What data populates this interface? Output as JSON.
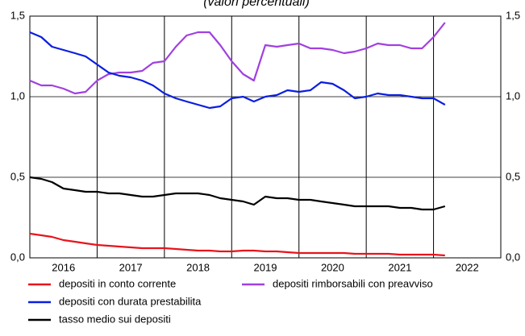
{
  "chart_data": {
    "type": "line",
    "title": "(valori percentuali)",
    "x": [
      2016,
      2016.17,
      2016.33,
      2016.5,
      2016.67,
      2016.83,
      2017,
      2017.17,
      2017.33,
      2017.5,
      2017.67,
      2017.83,
      2018,
      2018.17,
      2018.33,
      2018.5,
      2018.67,
      2018.83,
      2019,
      2019.17,
      2019.33,
      2019.5,
      2019.67,
      2019.83,
      2020,
      2020.17,
      2020.33,
      2020.5,
      2020.67,
      2020.83,
      2021,
      2021.17,
      2021.33,
      2021.5,
      2021.67,
      2021.83,
      2022,
      2022.17
    ],
    "series": [
      {
        "name": "depositi in conto corrente",
        "color": "#e8141c",
        "values": [
          0.15,
          0.14,
          0.13,
          0.11,
          0.1,
          0.09,
          0.08,
          0.075,
          0.07,
          0.065,
          0.06,
          0.06,
          0.06,
          0.055,
          0.05,
          0.045,
          0.045,
          0.04,
          0.04,
          0.045,
          0.045,
          0.04,
          0.04,
          0.035,
          0.03,
          0.03,
          0.03,
          0.03,
          0.03,
          0.025,
          0.025,
          0.025,
          0.025,
          0.02,
          0.02,
          0.02,
          0.02,
          0.015
        ]
      },
      {
        "name": "depositi rimborsabili con preavviso",
        "color": "#a040e0",
        "values": [
          1.1,
          1.07,
          1.07,
          1.05,
          1.02,
          1.03,
          1.1,
          1.14,
          1.15,
          1.15,
          1.16,
          1.21,
          1.22,
          1.31,
          1.38,
          1.4,
          1.4,
          1.32,
          1.22,
          1.14,
          1.1,
          1.32,
          1.31,
          1.32,
          1.33,
          1.3,
          1.3,
          1.29,
          1.27,
          1.28,
          1.3,
          1.33,
          1.32,
          1.32,
          1.3,
          1.3,
          1.37,
          1.46
        ]
      },
      {
        "name": "depositi con durata prestabilita",
        "color": "#0a1ee0",
        "values": [
          1.4,
          1.37,
          1.31,
          1.29,
          1.27,
          1.25,
          1.2,
          1.15,
          1.13,
          1.12,
          1.1,
          1.07,
          1.02,
          0.99,
          0.97,
          0.95,
          0.93,
          0.94,
          0.99,
          1.0,
          0.97,
          1.0,
          1.01,
          1.04,
          1.03,
          1.04,
          1.09,
          1.08,
          1.04,
          0.99,
          1.0,
          1.02,
          1.01,
          1.01,
          1.0,
          0.99,
          0.99,
          0.95
        ]
      },
      {
        "name": "tasso medio sui depositi",
        "color": "#000000",
        "values": [
          0.5,
          0.49,
          0.47,
          0.43,
          0.42,
          0.41,
          0.41,
          0.4,
          0.4,
          0.39,
          0.38,
          0.38,
          0.39,
          0.4,
          0.4,
          0.4,
          0.39,
          0.37,
          0.36,
          0.35,
          0.33,
          0.38,
          0.37,
          0.37,
          0.36,
          0.36,
          0.35,
          0.34,
          0.33,
          0.32,
          0.32,
          0.32,
          0.32,
          0.31,
          0.31,
          0.3,
          0.3,
          0.32
        ]
      }
    ],
    "xlim": [
      2016,
      2023
    ],
    "xticks": [
      {
        "value": 2016.5,
        "label": "2016"
      },
      {
        "value": 2017.5,
        "label": "2017"
      },
      {
        "value": 2018.5,
        "label": "2018"
      },
      {
        "value": 2019.5,
        "label": "2019"
      },
      {
        "value": 2020.5,
        "label": "2020"
      },
      {
        "value": 2021.5,
        "label": "2021"
      },
      {
        "value": 2022.5,
        "label": "2022"
      }
    ],
    "xgrid": [
      2017,
      2018,
      2019,
      2020,
      2021,
      2022
    ],
    "ylim": [
      0,
      1.5
    ],
    "yticks": [
      {
        "value": 0,
        "label": "0,0"
      },
      {
        "value": 0.5,
        "label": "0,5"
      },
      {
        "value": 1.0,
        "label": "1,0"
      },
      {
        "value": 1.5,
        "label": "1,5"
      }
    ],
    "grid": true
  }
}
